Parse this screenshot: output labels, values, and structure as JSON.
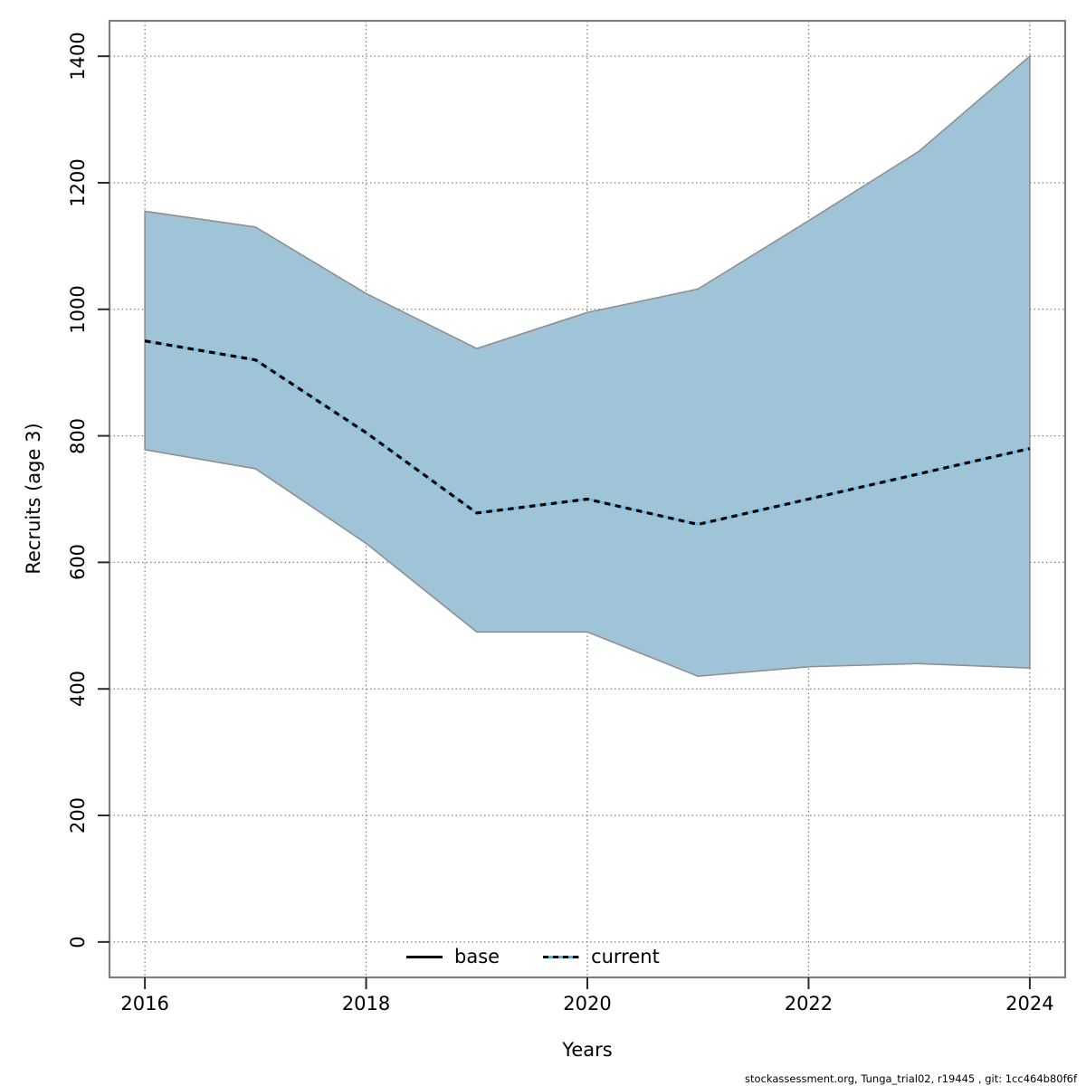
{
  "chart_data": {
    "type": "area",
    "title": "",
    "xlabel": "Years",
    "ylabel": "Recruits (age 3)",
    "x": [
      2016,
      2017,
      2018,
      2019,
      2020,
      2021,
      2022,
      2023,
      2024
    ],
    "series": [
      {
        "name": "confidence-band",
        "type": "band",
        "fill": "#a0c4d7",
        "edge_color": "#8f8f8f",
        "upper": [
          1155,
          1130,
          1025,
          938,
          995,
          1032,
          1140,
          1250,
          1400
        ],
        "lower": [
          778,
          748,
          630,
          490,
          490,
          420,
          435,
          440,
          433
        ]
      },
      {
        "name": "current",
        "type": "line",
        "style": "dashed-over-solid",
        "dash_color": "#000000",
        "under_color": "#72bade",
        "values": [
          950,
          920,
          805,
          678,
          700,
          660,
          700,
          740,
          780
        ]
      }
    ],
    "x_ticks": [
      2016,
      2018,
      2020,
      2022,
      2024
    ],
    "y_ticks": [
      0,
      200,
      400,
      600,
      800,
      1000,
      1200,
      1400
    ],
    "xlim": [
      2015.68,
      2024.32
    ],
    "ylim": [
      -56,
      1456
    ],
    "grid": true,
    "grid_color": "#808080",
    "box_color": "#7f7f7f",
    "legend_position": "bottom-center",
    "legend": [
      {
        "label": "base",
        "line": "solid",
        "color": "#000000"
      },
      {
        "label": "current",
        "line": "dotted",
        "color": "#5fa9d4"
      }
    ]
  },
  "footer": {
    "text": "stockassessment.org, Tunga_trial02, r19445 , git: 1cc464b80f6f"
  }
}
